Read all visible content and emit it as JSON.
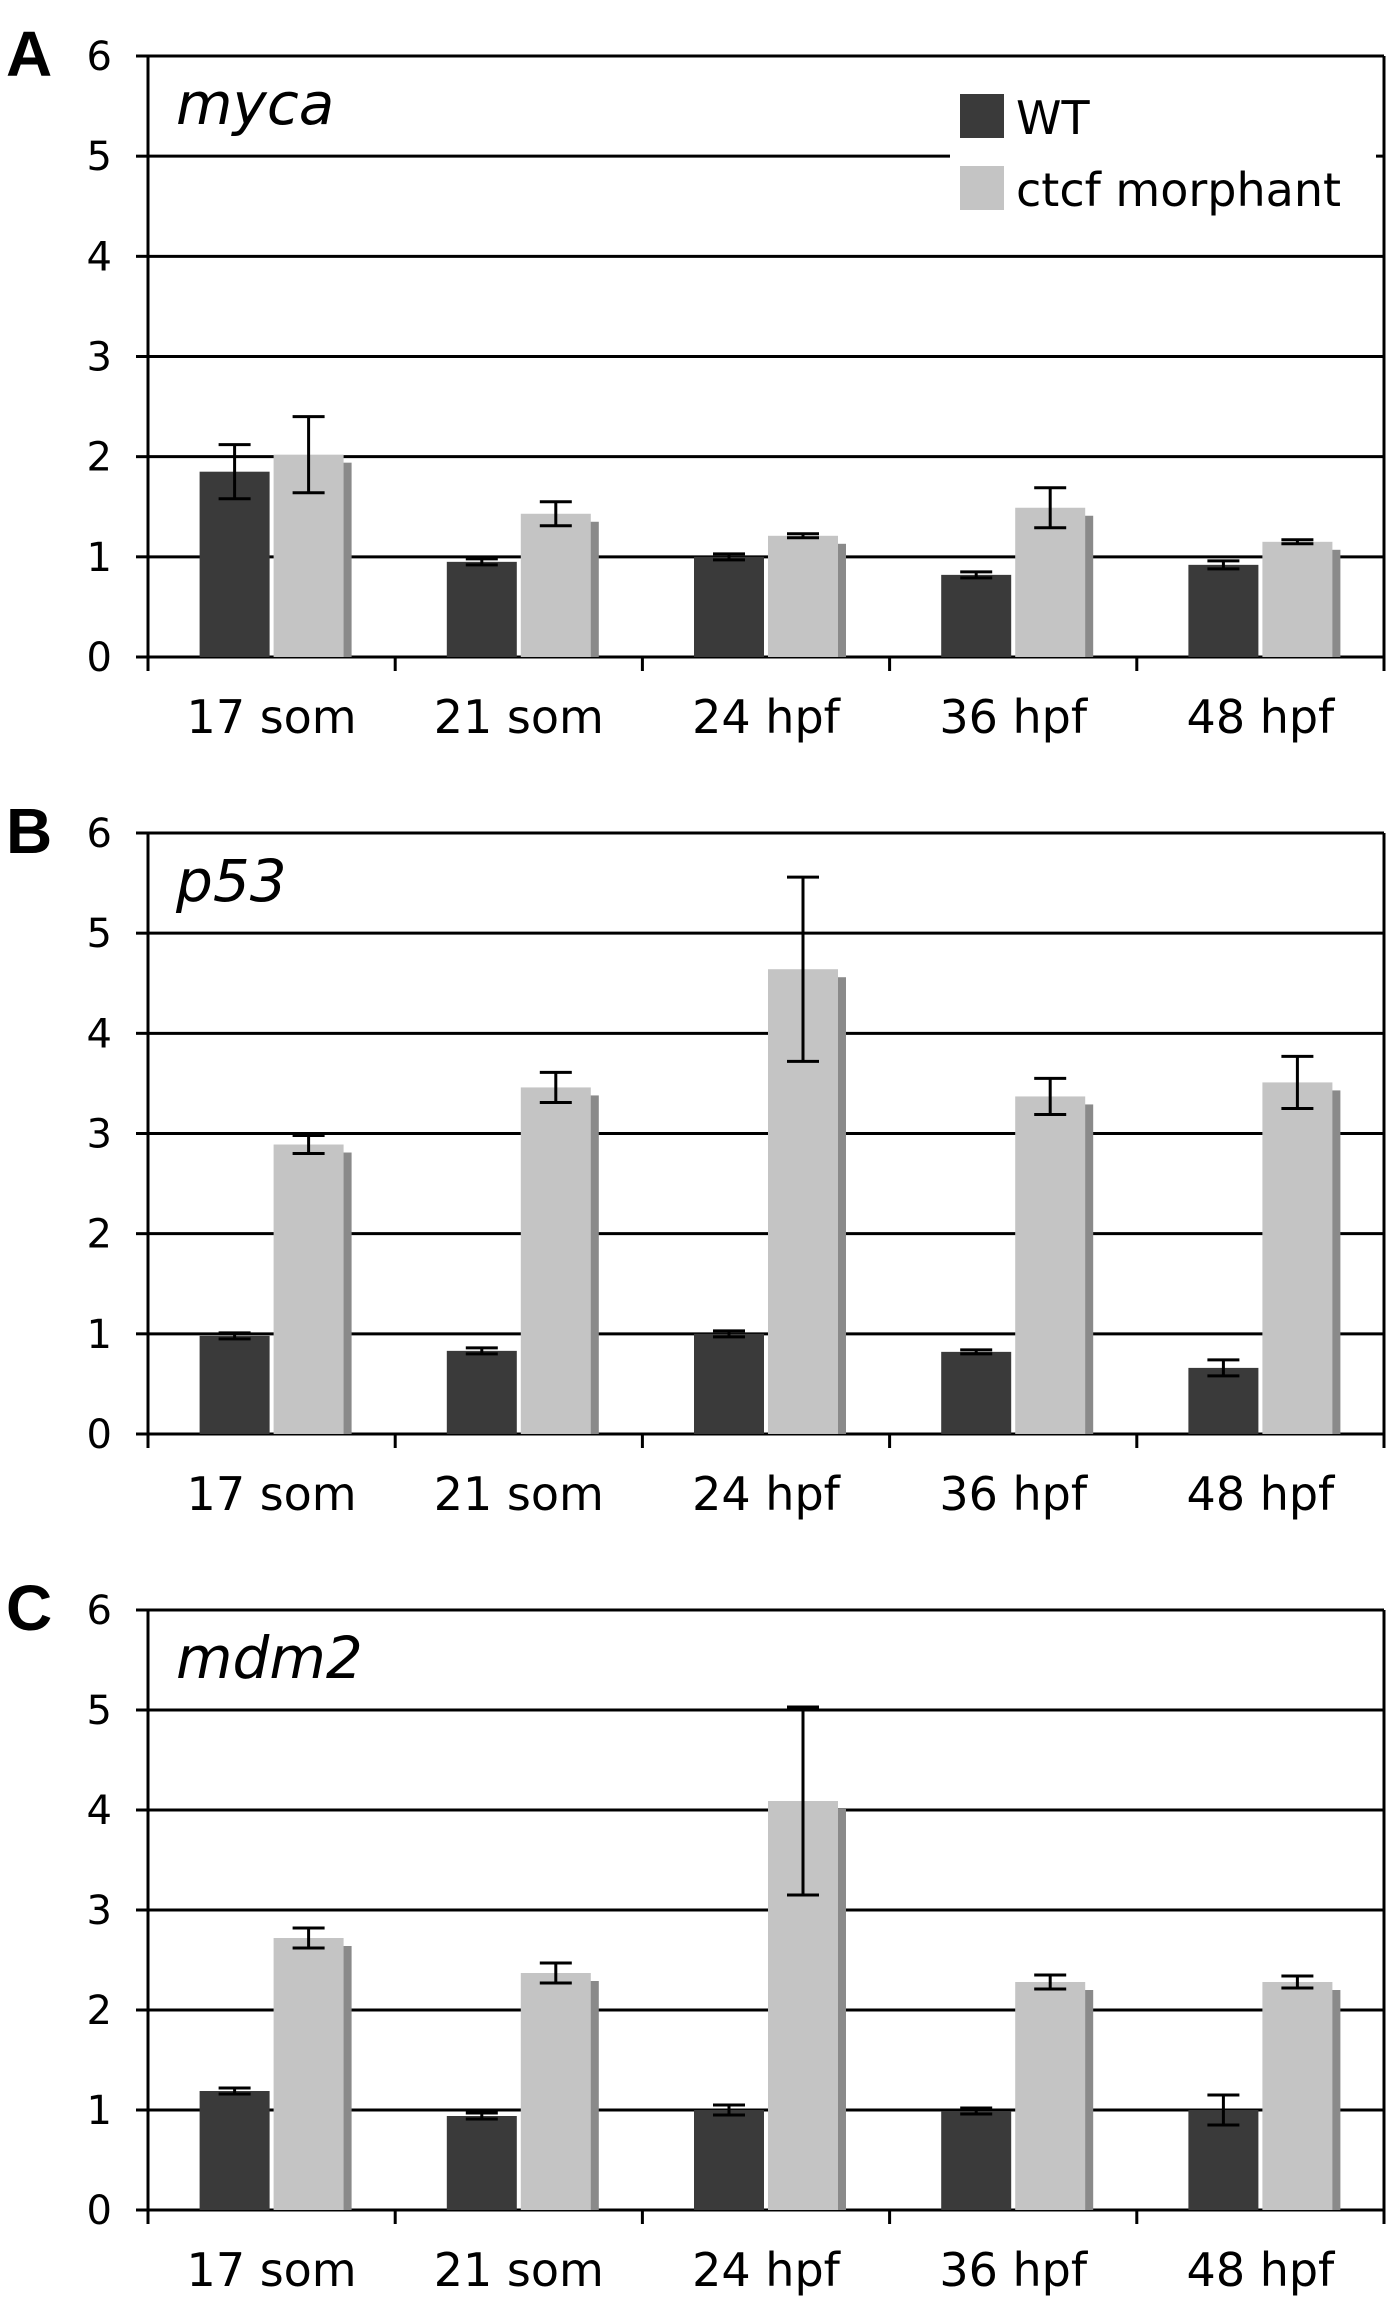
{
  "legend": {
    "wt_label": "WT",
    "morphant_label": "ctcf morphant"
  },
  "colors": {
    "wt": "#3a3a3a",
    "morphant": "#c4c4c4",
    "morphant_shadow": "#8a8a8a",
    "axis": "#000000"
  },
  "chart_data": [
    {
      "type": "bar",
      "panel": "A",
      "title": "myca",
      "categories": [
        "17 som",
        "21 som",
        "24 hpf",
        "36 hpf",
        "48 hpf"
      ],
      "series": [
        {
          "name": "WT",
          "values": [
            1.85,
            0.95,
            1.0,
            0.82,
            0.92
          ],
          "errors": [
            0.27,
            0.03,
            0.03,
            0.03,
            0.04
          ]
        },
        {
          "name": "ctcf morphant",
          "values": [
            2.02,
            1.43,
            1.21,
            1.49,
            1.15
          ],
          "errors": [
            0.38,
            0.12,
            0.02,
            0.2,
            0.02
          ]
        }
      ],
      "ylim": [
        0,
        6
      ],
      "yticks": [
        "0",
        "1",
        "2",
        "3",
        "4",
        "5",
        "6"
      ],
      "xlabel": "",
      "ylabel": "",
      "legend": "top-right"
    },
    {
      "type": "bar",
      "panel": "B",
      "title": "p53",
      "categories": [
        "17 som",
        "21 som",
        "24 hpf",
        "36 hpf",
        "48 hpf"
      ],
      "series": [
        {
          "name": "WT",
          "values": [
            0.98,
            0.83,
            1.0,
            0.82,
            0.66
          ],
          "errors": [
            0.03,
            0.03,
            0.03,
            0.02,
            0.08
          ]
        },
        {
          "name": "ctcf morphant",
          "values": [
            2.89,
            3.46,
            4.64,
            3.37,
            3.51
          ],
          "errors": [
            0.09,
            0.15,
            0.92,
            0.18,
            0.26
          ]
        }
      ],
      "ylim": [
        0,
        6
      ],
      "yticks": [
        "0",
        "1",
        "2",
        "3",
        "4",
        "5",
        "6"
      ],
      "xlabel": "",
      "ylabel": ""
    },
    {
      "type": "bar",
      "panel": "C",
      "title": "mdm2",
      "categories": [
        "17 som",
        "21 som",
        "24 hpf",
        "36 hpf",
        "48 hpf"
      ],
      "series": [
        {
          "name": "WT",
          "values": [
            1.19,
            0.94,
            1.0,
            0.99,
            1.0
          ],
          "errors": [
            0.03,
            0.03,
            0.05,
            0.03,
            0.15
          ]
        },
        {
          "name": "ctcf morphant",
          "values": [
            2.72,
            2.37,
            4.09,
            2.28,
            2.28
          ],
          "errors": [
            0.1,
            0.1,
            0.94,
            0.07,
            0.06
          ]
        }
      ],
      "ylim": [
        0,
        6
      ],
      "yticks": [
        "0",
        "1",
        "2",
        "3",
        "4",
        "5",
        "6"
      ],
      "xlabel": "",
      "ylabel": ""
    }
  ]
}
